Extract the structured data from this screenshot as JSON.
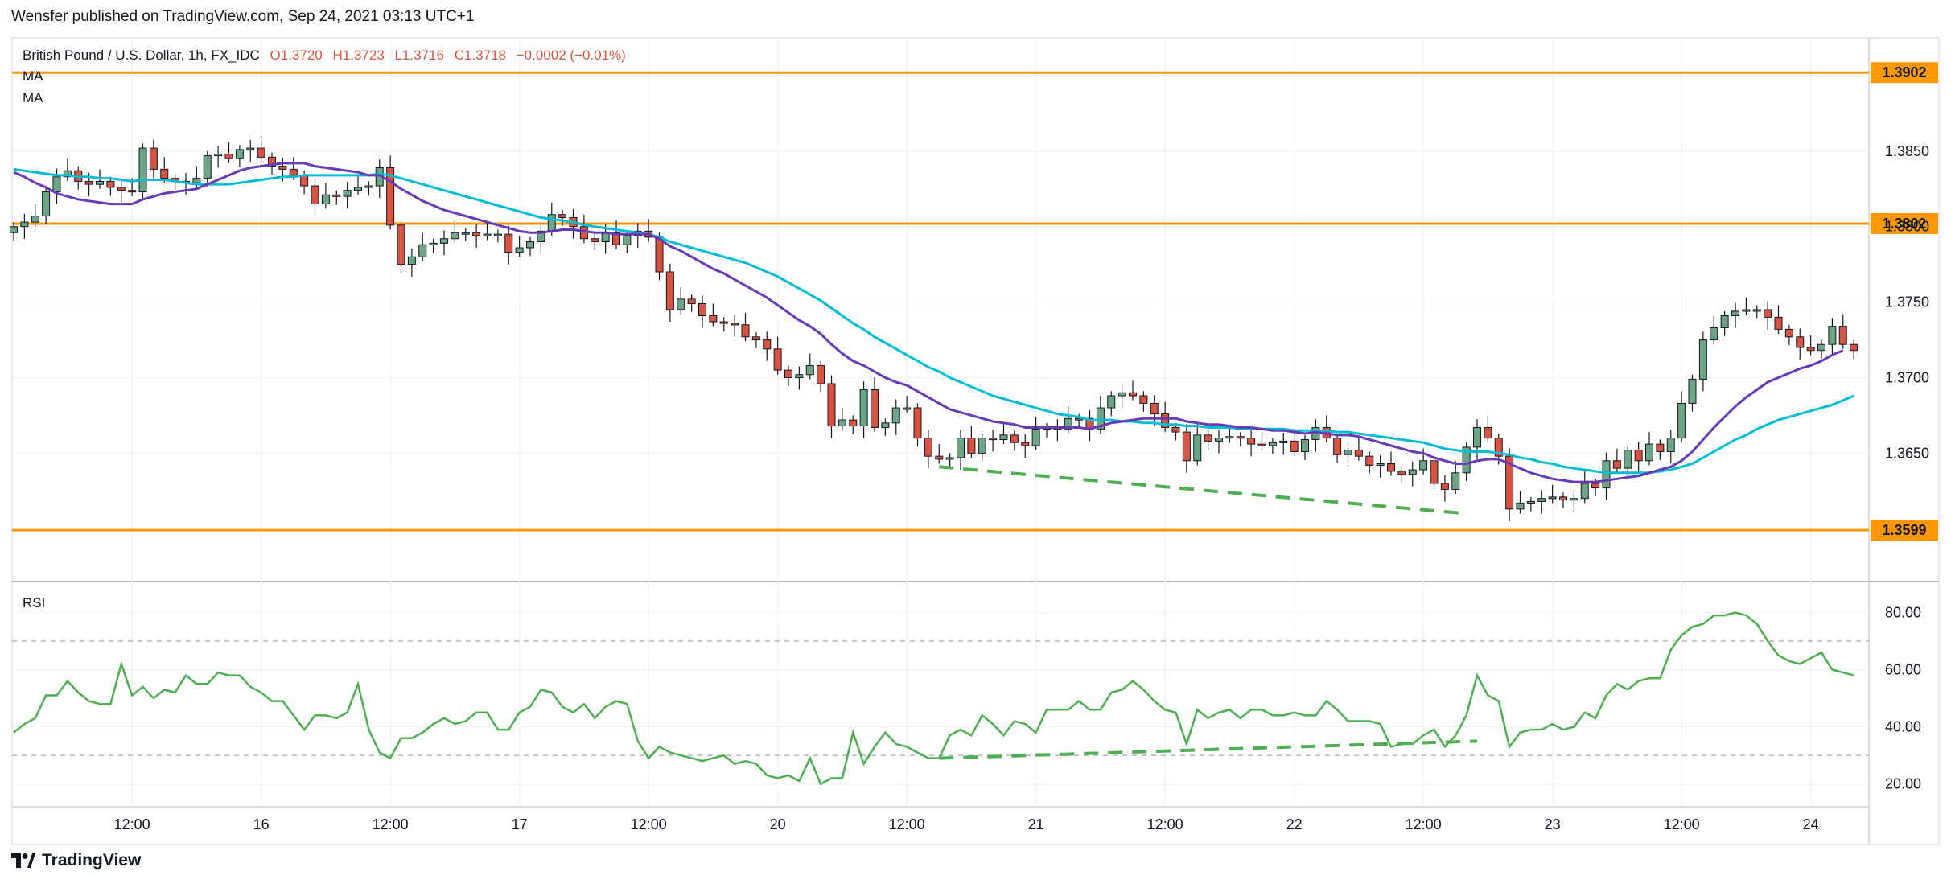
{
  "header": {
    "published": "Wensfer published on TradingView.com, Sep 24, 2021 03:13 UTC+1"
  },
  "legend": {
    "symbol": "British Pound / U.S. Dollar, 1h, FX_IDC",
    "open": "O1.3720",
    "high": "H1.3723",
    "low": "L1.3716",
    "close": "C1.3718",
    "change": "−0.0002 (−0.01%)",
    "ma1": "MA",
    "ma2": "MA",
    "rsi": "RSI"
  },
  "footer": {
    "brand": "TradingView"
  },
  "colors": {
    "up": "#6ba583",
    "down": "#d75442",
    "ma_slow": "#00bcd4",
    "ma_fast": "#673ab7",
    "level": "#ff9800",
    "rsi": "#4caf50",
    "trend": "#4caf50",
    "grid": "#f0f3fa"
  },
  "chart_data": [
    {
      "type": "candlestick",
      "ylim": [
        1.3565,
        1.3925
      ],
      "price_ticks": [
        "1.3850",
        "1.3800",
        "1.3750",
        "1.3700",
        "1.3650"
      ],
      "price_tick_values": [
        1.385,
        1.38,
        1.375,
        1.37,
        1.365
      ],
      "x_ticks": [
        "12:00",
        "16",
        "12:00",
        "17",
        "12:00",
        "20",
        "12:00",
        "21",
        "12:00",
        "22",
        "12:00",
        "23",
        "12:00",
        "24"
      ],
      "x_tick_index": [
        11,
        23,
        35,
        47,
        59,
        71,
        83,
        95,
        107,
        119,
        131,
        143,
        155,
        167
      ],
      "horizontal_levels": [
        {
          "value": 1.3902,
          "label": "1.3902"
        },
        {
          "value": 1.3802,
          "label": "1.3802"
        },
        {
          "value": 1.3599,
          "label": "1.3599"
        }
      ],
      "trendline_price": {
        "from": [
          86,
          1.3641
        ],
        "to": [
          135,
          1.361
        ]
      },
      "close": [
        1.38,
        1.3803,
        1.3807,
        1.3823,
        1.3833,
        1.3837,
        1.383,
        1.3828,
        1.383,
        1.3826,
        1.3824,
        1.3823,
        1.3852,
        1.3838,
        1.3832,
        1.383,
        1.3829,
        1.3832,
        1.3847,
        1.3848,
        1.3845,
        1.3851,
        1.3852,
        1.3846,
        1.384,
        1.3838,
        1.3834,
        1.3827,
        1.3815,
        1.3821,
        1.382,
        1.3824,
        1.3826,
        1.3827,
        1.3839,
        1.3801,
        1.3775,
        1.378,
        1.3788,
        1.3789,
        1.3792,
        1.3796,
        1.3796,
        1.3794,
        1.3795,
        1.3795,
        1.3783,
        1.3786,
        1.379,
        1.3797,
        1.3808,
        1.3806,
        1.38,
        1.3792,
        1.379,
        1.3796,
        1.3788,
        1.3794,
        1.3797,
        1.3793,
        1.377,
        1.3745,
        1.3752,
        1.3749,
        1.3741,
        1.3737,
        1.3736,
        1.3735,
        1.3727,
        1.3725,
        1.3719,
        1.3705,
        1.37,
        1.3702,
        1.3708,
        1.3696,
        1.3668,
        1.3672,
        1.3668,
        1.3692,
        1.3667,
        1.367,
        1.368,
        1.368,
        1.366,
        1.3648,
        1.3646,
        1.3647,
        1.366,
        1.365,
        1.366,
        1.3659,
        1.3662,
        1.3657,
        1.3655,
        1.3666,
        1.3667,
        1.3666,
        1.3673,
        1.3673,
        1.3666,
        1.368,
        1.3688,
        1.369,
        1.3688,
        1.3683,
        1.3676,
        1.3667,
        1.3664,
        1.3645,
        1.3662,
        1.3658,
        1.366,
        1.3661,
        1.366,
        1.3656,
        1.3655,
        1.3657,
        1.3658,
        1.3651,
        1.3659,
        1.3667,
        1.366,
        1.3649,
        1.3652,
        1.3648,
        1.3642,
        1.3643,
        1.3638,
        1.3636,
        1.3639,
        1.3645,
        1.363,
        1.3626,
        1.3637,
        1.3654,
        1.3667,
        1.366,
        1.3648,
        1.3613,
        1.3617,
        1.3618,
        1.362,
        1.3621,
        1.3619,
        1.362,
        1.363,
        1.3627,
        1.3645,
        1.364,
        1.3652,
        1.3645,
        1.3656,
        1.3651,
        1.366,
        1.3683,
        1.3699,
        1.3725,
        1.3733,
        1.3741,
        1.3744,
        1.3745,
        1.3745,
        1.374,
        1.3732,
        1.3727,
        1.372,
        1.3718,
        1.3722,
        1.3734,
        1.3722,
        1.3718
      ],
      "ma_fast_values": [
        1.3836,
        1.3833,
        1.3829,
        1.3826,
        1.3822,
        1.382,
        1.3818,
        1.3817,
        1.3816,
        1.3815,
        1.3815,
        1.3815,
        1.3818,
        1.382,
        1.3822,
        1.3823,
        1.3824,
        1.3825,
        1.3828,
        1.3831,
        1.3834,
        1.3837,
        1.3839,
        1.384,
        1.3841,
        1.3842,
        1.3842,
        1.3842,
        1.384,
        1.3839,
        1.3838,
        1.3837,
        1.3836,
        1.3834,
        1.3834,
        1.383,
        1.3825,
        1.3821,
        1.3817,
        1.3814,
        1.3811,
        1.3809,
        1.3807,
        1.3805,
        1.3803,
        1.3801,
        1.3799,
        1.3797,
        1.3796,
        1.3796,
        1.3797,
        1.3798,
        1.3798,
        1.3797,
        1.3796,
        1.3796,
        1.3795,
        1.3795,
        1.3795,
        1.3795,
        1.3792,
        1.3787,
        1.3784,
        1.378,
        1.3776,
        1.3772,
        1.3769,
        1.3765,
        1.3761,
        1.3757,
        1.3753,
        1.3748,
        1.3743,
        1.3738,
        1.3734,
        1.3729,
        1.3722,
        1.3716,
        1.3711,
        1.3708,
        1.3704,
        1.37,
        1.3697,
        1.3695,
        1.3691,
        1.3687,
        1.3683,
        1.3679,
        1.3677,
        1.3675,
        1.3673,
        1.3671,
        1.367,
        1.3669,
        1.3667,
        1.3667,
        1.3667,
        1.3667,
        1.3667,
        1.3667,
        1.3666,
        1.3668,
        1.367,
        1.3671,
        1.3672,
        1.3673,
        1.3673,
        1.3673,
        1.3673,
        1.3671,
        1.367,
        1.3669,
        1.3669,
        1.3668,
        1.3667,
        1.3667,
        1.3666,
        1.3665,
        1.3665,
        1.3664,
        1.3663,
        1.3664,
        1.3663,
        1.3662,
        1.3662,
        1.3661,
        1.3659,
        1.3657,
        1.3655,
        1.3653,
        1.3651,
        1.365,
        1.3647,
        1.3645,
        1.3643,
        1.3643,
        1.3645,
        1.3646,
        1.3646,
        1.3643,
        1.364,
        1.3637,
        1.3635,
        1.3633,
        1.3632,
        1.3631,
        1.3631,
        1.3631,
        1.3632,
        1.3633,
        1.3634,
        1.3635,
        1.3637,
        1.3639,
        1.3641,
        1.3645,
        1.3651,
        1.3659,
        1.3667,
        1.3674,
        1.3681,
        1.3687,
        1.3692,
        1.3697,
        1.37,
        1.3703,
        1.3706,
        1.3708,
        1.3711,
        1.3715,
        1.3718
      ],
      "ma_slow_values": [
        1.3838,
        1.3837,
        1.3836,
        1.3835,
        1.3834,
        1.3834,
        1.3833,
        1.3833,
        1.3832,
        1.3832,
        1.3831,
        1.383,
        1.3831,
        1.3831,
        1.3831,
        1.383,
        1.3829,
        1.3828,
        1.3828,
        1.3828,
        1.3828,
        1.3829,
        1.383,
        1.3831,
        1.3832,
        1.3833,
        1.3833,
        1.3834,
        1.3834,
        1.3834,
        1.3834,
        1.3834,
        1.3834,
        1.3834,
        1.3835,
        1.3834,
        1.3832,
        1.383,
        1.3828,
        1.3826,
        1.3824,
        1.3822,
        1.382,
        1.3818,
        1.3816,
        1.3814,
        1.3812,
        1.381,
        1.3808,
        1.3806,
        1.3805,
        1.3804,
        1.3803,
        1.3801,
        1.38,
        1.3799,
        1.3798,
        1.3797,
        1.3796,
        1.3795,
        1.3793,
        1.379,
        1.3788,
        1.3786,
        1.3784,
        1.3782,
        1.378,
        1.3778,
        1.3776,
        1.3773,
        1.377,
        1.3767,
        1.3763,
        1.3759,
        1.3755,
        1.3751,
        1.3746,
        1.3741,
        1.3736,
        1.3732,
        1.3727,
        1.3723,
        1.3719,
        1.3715,
        1.3711,
        1.3707,
        1.3704,
        1.37,
        1.3697,
        1.3694,
        1.3691,
        1.3688,
        1.3686,
        1.3684,
        1.3682,
        1.368,
        1.3678,
        1.3676,
        1.3675,
        1.3674,
        1.3672,
        1.3672,
        1.3672,
        1.3671,
        1.3671,
        1.367,
        1.367,
        1.3669,
        1.3669,
        1.3668,
        1.3668,
        1.3667,
        1.3667,
        1.3667,
        1.3666,
        1.3666,
        1.3666,
        1.3666,
        1.3666,
        1.3665,
        1.3665,
        1.3665,
        1.3665,
        1.3664,
        1.3664,
        1.3663,
        1.3662,
        1.3661,
        1.366,
        1.3659,
        1.3658,
        1.3657,
        1.3655,
        1.3653,
        1.3652,
        1.3651,
        1.3651,
        1.3651,
        1.365,
        1.3649,
        1.3647,
        1.3646,
        1.3644,
        1.3643,
        1.3641,
        1.364,
        1.3639,
        1.3638,
        1.3637,
        1.3637,
        1.3637,
        1.3637,
        1.3637,
        1.3638,
        1.3639,
        1.3641,
        1.3643,
        1.3647,
        1.3651,
        1.3655,
        1.3659,
        1.3662,
        1.3666,
        1.3669,
        1.3672,
        1.3674,
        1.3676,
        1.3678,
        1.368,
        1.3682,
        1.3685,
        1.3688
      ]
    },
    {
      "type": "line",
      "name": "RSI",
      "ylim": [
        12,
        90
      ],
      "y_ticks": [
        "80.00",
        "60.00",
        "40.00",
        "20.00"
      ],
      "y_tick_values": [
        80,
        60,
        40,
        20
      ],
      "bands": [
        70,
        30
      ],
      "trendline_rsi": {
        "from": [
          86,
          29
        ],
        "to": [
          136,
          35
        ]
      },
      "values": [
        38,
        41,
        43,
        51,
        51,
        56,
        52,
        49,
        48,
        48,
        62,
        51,
        54,
        50,
        53,
        52,
        58,
        55,
        55,
        59,
        58,
        58,
        54,
        52,
        49,
        49,
        44,
        39,
        44,
        44,
        43,
        45,
        55,
        39,
        31,
        29,
        36,
        36,
        38,
        41,
        43,
        41,
        42,
        45,
        45,
        39,
        39,
        45,
        47,
        53,
        52,
        47,
        45,
        48,
        43,
        47,
        49,
        48,
        35,
        29,
        33,
        31,
        30,
        29,
        28,
        29,
        30,
        27,
        28,
        27,
        23,
        22,
        23,
        21,
        29,
        20,
        22,
        22,
        38,
        27,
        33,
        38,
        34,
        33,
        31,
        29,
        29,
        37,
        39,
        37,
        44,
        41,
        37,
        42,
        41,
        38,
        46,
        46,
        46,
        49,
        46,
        46,
        52,
        53,
        56,
        53,
        49,
        46,
        45,
        34,
        46,
        43,
        45,
        46,
        43,
        46,
        46,
        44,
        44,
        45,
        44,
        44,
        49,
        46,
        42,
        42,
        42,
        41,
        33,
        34,
        34,
        37,
        39,
        33,
        37,
        44,
        58,
        51,
        49,
        33,
        38,
        39,
        39,
        41,
        39,
        40,
        45,
        43,
        51,
        55,
        53,
        56,
        57,
        57,
        67,
        72,
        75,
        76,
        79,
        79,
        80,
        79,
        76,
        70,
        65,
        63,
        62,
        64,
        66,
        60,
        59,
        58
      ]
    }
  ]
}
